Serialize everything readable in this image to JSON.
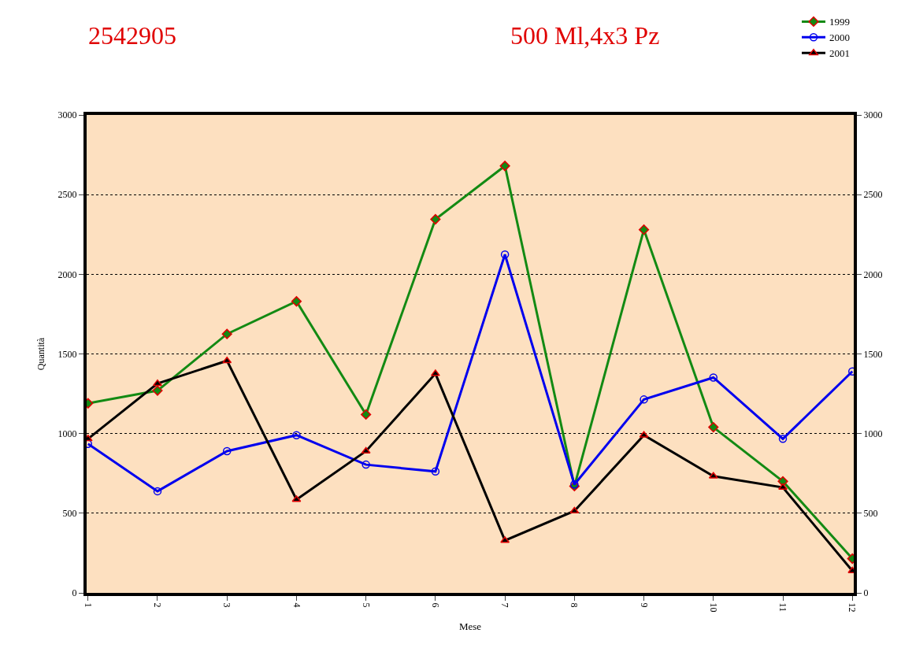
{
  "chart_data": {
    "type": "line",
    "title": "2542905",
    "subtitle": "500 Ml,4x3 Pz",
    "xlabel": "Mese",
    "ylabel": "Quantità",
    "categories": [
      "1",
      "2",
      "3",
      "4",
      "5",
      "6",
      "7",
      "8",
      "9",
      "10",
      "11",
      "12"
    ],
    "series": [
      {
        "name": "1999",
        "color": "#138a13",
        "marker": "diamond",
        "values": [
          1190,
          1270,
          1625,
          1830,
          1120,
          2345,
          2680,
          670,
          2280,
          1040,
          700,
          215
        ]
      },
      {
        "name": "2000",
        "color": "#0000ee",
        "marker": "circle",
        "values": [
          935,
          638,
          890,
          990,
          805,
          762,
          2124,
          681,
          1214,
          1352,
          967,
          1390
        ]
      },
      {
        "name": "2001",
        "color": "#000000",
        "marker": "triangle",
        "values": [
          967,
          1314,
          1457,
          586,
          890,
          1376,
          329,
          514,
          990,
          733,
          662,
          138
        ]
      }
    ],
    "ylim": [
      0,
      3000
    ],
    "yticks": [
      0,
      500,
      1000,
      1500,
      2000,
      2500,
      3000
    ],
    "y2lim": [
      0,
      3000
    ],
    "y2ticks": [
      0,
      500,
      1000,
      1500,
      2000,
      2500,
      3000
    ],
    "grid": "y",
    "legend": "top right"
  }
}
